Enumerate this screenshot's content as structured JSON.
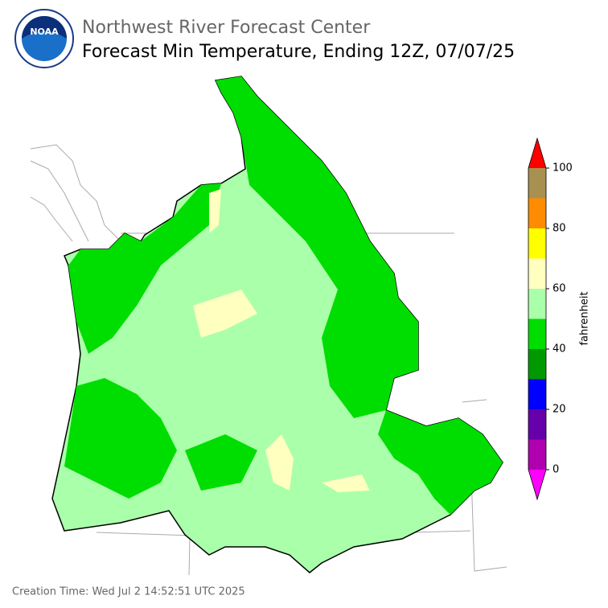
{
  "header": {
    "logo": "NOAA",
    "title": "Northwest River Forecast Center",
    "subtitle": "Forecast Min Temperature, Ending 12Z, 07/07/25"
  },
  "colorbar": {
    "label": "fahrenheit",
    "bounds": [
      0,
      10,
      20,
      30,
      40,
      50,
      60,
      70,
      80,
      90,
      100
    ],
    "colors": [
      "#b000b0",
      "#6600aa",
      "#0000ff",
      "#009900",
      "#00dd00",
      "#aaffaa",
      "#ffffc0",
      "#ffff00",
      "#ff8c00",
      "#a89050"
    ],
    "under_color": "#ff00ff",
    "over_color": "#ff0000",
    "ticks": [
      0,
      20,
      40,
      60,
      80,
      100
    ]
  },
  "footer": {
    "creation_time": "Creation Time: Wed Jul 2 14:52:51 UTC 2025"
  }
}
